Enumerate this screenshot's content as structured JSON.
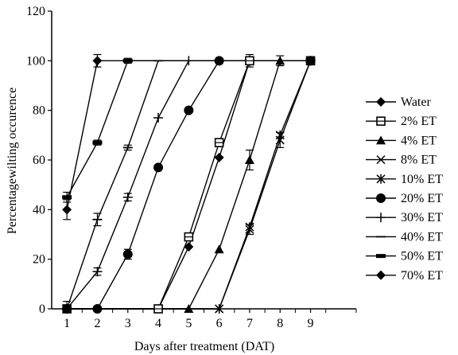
{
  "chart_data": {
    "type": "line",
    "title": "",
    "xlabel": "Days after treatment (DAT)",
    "ylabel": "Percentagewilting occurence",
    "x": [
      1,
      2,
      3,
      4,
      5,
      6,
      7,
      8,
      9
    ],
    "xlim": [
      0.5,
      10.5
    ],
    "ylim": [
      0,
      120
    ],
    "yticks": [
      0,
      20,
      40,
      60,
      80,
      100,
      120
    ],
    "xticks": [
      1,
      2,
      3,
      4,
      5,
      6,
      7,
      8,
      9
    ],
    "grid": false,
    "legend_position": "right",
    "series": [
      {
        "name": "Water",
        "marker": "diamond",
        "values": [
          0,
          0,
          0,
          0,
          25,
          61,
          100,
          100,
          100
        ]
      },
      {
        "name": "2% ET",
        "marker": "open-square",
        "values": [
          0,
          0,
          0,
          0,
          29,
          67,
          100,
          100,
          100
        ]
      },
      {
        "name": "4% ET",
        "marker": "triangle",
        "values": [
          0,
          0,
          0,
          0,
          0,
          24,
          60,
          100,
          100
        ]
      },
      {
        "name": "8% ET",
        "marker": "x",
        "values": [
          0,
          0,
          0,
          0,
          0,
          0,
          32,
          68,
          100
        ]
      },
      {
        "name": "10% ET",
        "marker": "asterisk",
        "values": [
          0,
          0,
          0,
          0,
          0,
          0,
          33,
          70,
          100
        ]
      },
      {
        "name": "20% ET",
        "marker": "circle",
        "values": [
          0,
          0,
          22,
          57,
          80,
          100,
          100,
          100,
          100
        ]
      },
      {
        "name": "30% ET",
        "marker": "plus",
        "values": [
          0,
          15,
          45,
          77,
          100,
          100,
          100,
          100,
          100
        ]
      },
      {
        "name": "40% ET",
        "marker": "dash",
        "values": [
          0,
          36,
          65,
          100,
          100,
          100,
          100,
          100,
          100
        ]
      },
      {
        "name": "50% ET",
        "marker": "bar",
        "values": [
          45,
          67,
          100,
          100,
          100,
          100,
          100,
          100,
          100
        ]
      },
      {
        "name": "70% ET",
        "marker": "diamond",
        "values": [
          40,
          100,
          100,
          100,
          100,
          100,
          100,
          100,
          100
        ]
      }
    ],
    "error_bars": [
      {
        "x": 1,
        "y": 40,
        "err": 4
      },
      {
        "x": 1,
        "y": 45,
        "err": 2
      },
      {
        "x": 1,
        "y": 0,
        "err": 3
      },
      {
        "x": 2,
        "y": 100,
        "err": 2.5
      },
      {
        "x": 2,
        "y": 67,
        "err": 1
      },
      {
        "x": 2,
        "y": 36,
        "err": 2.5
      },
      {
        "x": 2,
        "y": 15,
        "err": 1.5
      },
      {
        "x": 3,
        "y": 65,
        "err": 1
      },
      {
        "x": 3,
        "y": 45,
        "err": 1.5
      },
      {
        "x": 3,
        "y": 22,
        "err": 2
      },
      {
        "x": 3,
        "y": 100,
        "err": 1
      },
      {
        "x": 6,
        "y": 67,
        "err": 1.5
      },
      {
        "x": 7,
        "y": 100,
        "err": 2.5
      },
      {
        "x": 7,
        "y": 60,
        "err": 4
      },
      {
        "x": 7,
        "y": 32,
        "err": 2
      },
      {
        "x": 8,
        "y": 100,
        "err": 2
      },
      {
        "x": 8,
        "y": 68,
        "err": 3
      },
      {
        "x": 9,
        "y": 100,
        "err": 1
      }
    ]
  }
}
